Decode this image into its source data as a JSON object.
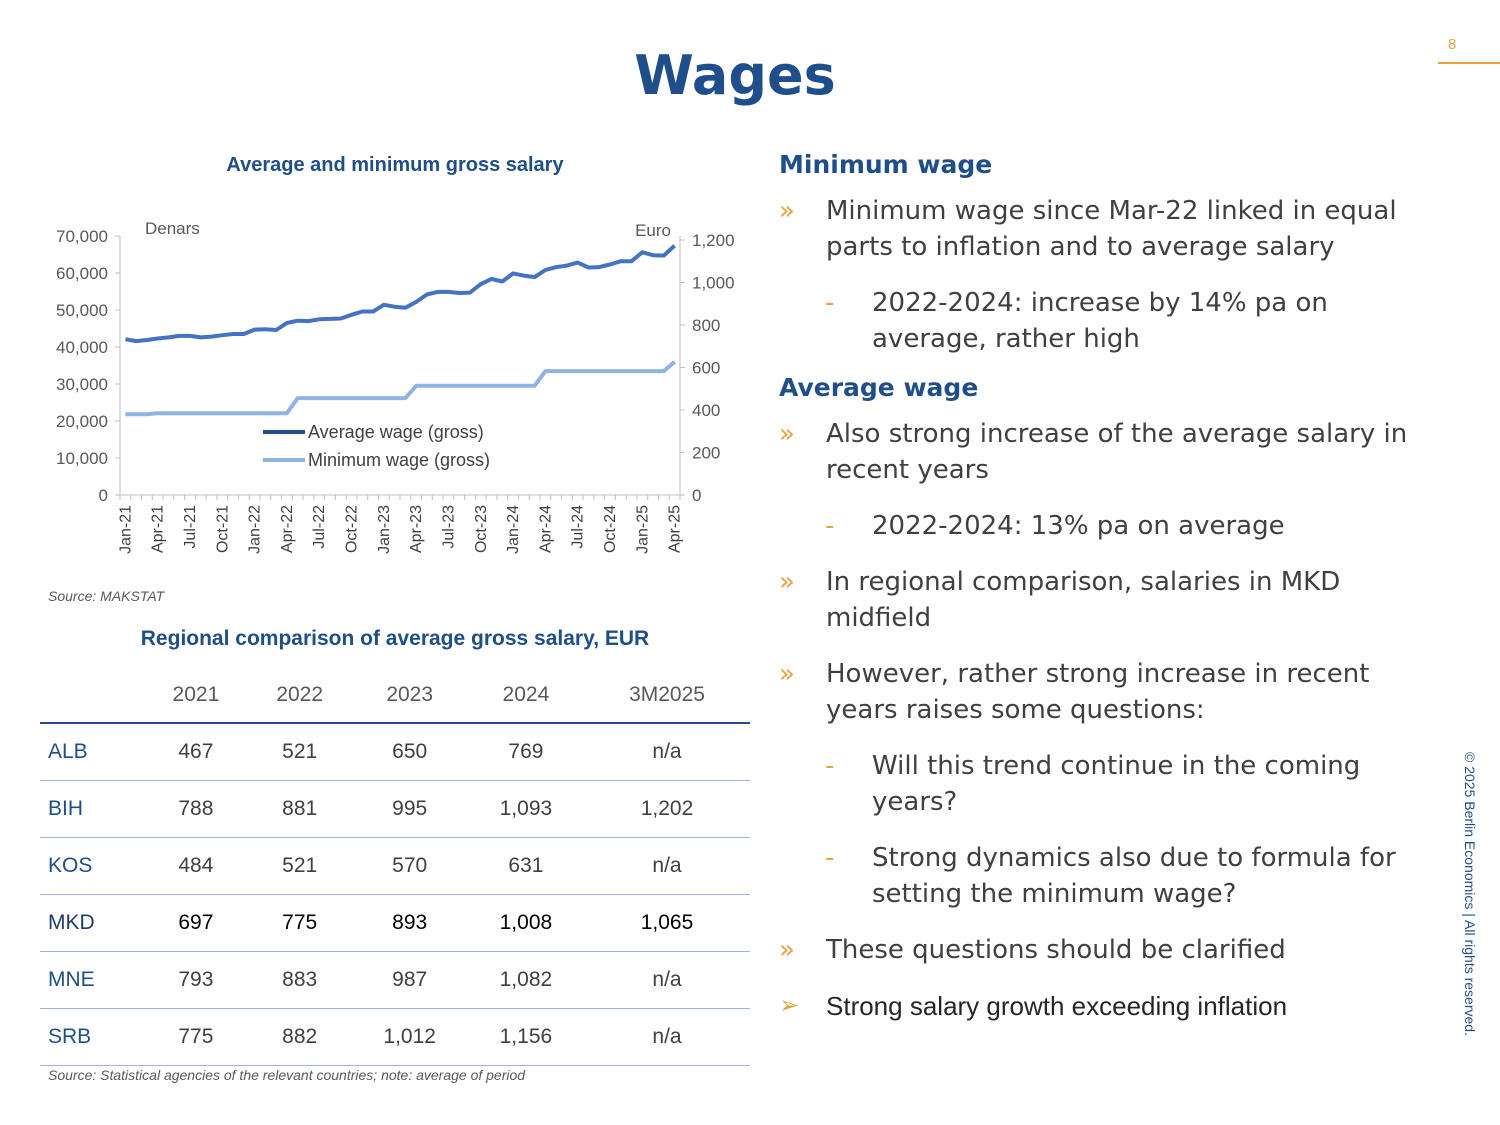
{
  "page_number": "8",
  "title": "Wages",
  "chart_data": {
    "type": "line",
    "title": "Average and minimum gross salary",
    "left_axis_label": "Denars",
    "right_axis_label": "Euro",
    "ylim_left": [
      0,
      70000
    ],
    "ylim_right": [
      0,
      1200
    ],
    "left_ticks": [
      "0",
      "10,000",
      "20,000",
      "30,000",
      "40,000",
      "50,000",
      "60,000",
      "70,000"
    ],
    "right_ticks": [
      "0",
      "200",
      "400",
      "600",
      "800",
      "1,000",
      "1,200"
    ],
    "x_tick_labels": [
      "Jan-21",
      "Apr-21",
      "Jul-21",
      "Oct-21",
      "Jan-22",
      "Apr-22",
      "Jul-22",
      "Oct-22",
      "Jan-23",
      "Apr-23",
      "Jul-23",
      "Oct-23",
      "Jan-24",
      "Apr-24",
      "Jul-24",
      "Oct-24",
      "Jan-25",
      "Apr-25"
    ],
    "x_start": "Jan-21",
    "x_end": "Apr-25",
    "series": [
      {
        "name": "Average wage (gross)",
        "color": "#4472C4",
        "values": [
          42100,
          41600,
          41900,
          42300,
          42600,
          43000,
          43000,
          42600,
          42800,
          43200,
          43500,
          43500,
          44700,
          44800,
          44600,
          46500,
          47100,
          47000,
          47500,
          47600,
          47700,
          48700,
          49600,
          49600,
          51400,
          50900,
          50600,
          52200,
          54200,
          54900,
          54900,
          54600,
          54700,
          57000,
          58400,
          57700,
          59900,
          59300,
          58900,
          60800,
          61600,
          62000,
          62800,
          61500,
          61600,
          62300,
          63200,
          63200,
          65600,
          64800,
          64700,
          67400
        ]
      },
      {
        "name": "Minimum wage (gross)",
        "color": "#8FB4E3",
        "values": [
          21800,
          21800,
          21800,
          22100,
          22100,
          22100,
          22100,
          22100,
          22100,
          22100,
          22100,
          22100,
          22100,
          22100,
          22100,
          22100,
          26200,
          26200,
          26200,
          26200,
          26200,
          26200,
          26200,
          26200,
          26200,
          26200,
          26200,
          29500,
          29500,
          29500,
          29500,
          29500,
          29500,
          29500,
          29500,
          29500,
          29500,
          29500,
          29500,
          33500,
          33500,
          33500,
          33500,
          33500,
          33500,
          33500,
          33500,
          33500,
          33500,
          33500,
          33500,
          36000
        ]
      }
    ]
  },
  "chart_source": "Source: MAKSTAT",
  "table": {
    "title": "Regional comparison of average gross salary, EUR",
    "headers": [
      "",
      "2021",
      "2022",
      "2023",
      "2024",
      "3M2025"
    ],
    "rows": [
      {
        "country": "ALB",
        "values": [
          "467",
          "521",
          "650",
          "769",
          "n/a"
        ]
      },
      {
        "country": "BIH",
        "values": [
          "788",
          "881",
          "995",
          "1,093",
          "1,202"
        ]
      },
      {
        "country": "KOS",
        "values": [
          "484",
          "521",
          "570",
          "631",
          "n/a"
        ]
      },
      {
        "country": "MKD",
        "values": [
          "697",
          "775",
          "893",
          "1,008",
          "1,065"
        ]
      },
      {
        "country": "MNE",
        "values": [
          "793",
          "883",
          "987",
          "1,082",
          "n/a"
        ]
      },
      {
        "country": "SRB",
        "values": [
          "775",
          "882",
          "1,012",
          "1,156",
          "n/a"
        ]
      }
    ],
    "highlight_row": "MKD",
    "source": "Source: Statistical agencies of the relevant countries; note: average of period"
  },
  "right": {
    "minimum_heading": "Minimum wage",
    "min_b1": "Minimum wage since Mar-22 linked in equal parts to inflation and to average salary",
    "min_s1": "2022-2024: increase by 14% pa on average, rather high",
    "average_heading": "Average wage",
    "avg_b1": "Also strong increase of the average salary in recent years",
    "avg_s1": "2022-2024: 13% pa on average",
    "avg_b2": "In regional comparison, salaries in MKD midfield",
    "avg_b3": "However, rather strong increase in recent years raises some questions:",
    "avg_s2": "Will this trend continue in the coming years?",
    "avg_s3": "Strong dynamics also due to formula for setting the minimum wage?",
    "avg_b4": "These questions should be clarified",
    "conclusion": "Strong salary growth exceeding inflation"
  },
  "markers": {
    "arrow": "»",
    "dash": "-",
    "check": "➢"
  },
  "copyright": "© 2025 Berlin Economics | All rights reserved."
}
